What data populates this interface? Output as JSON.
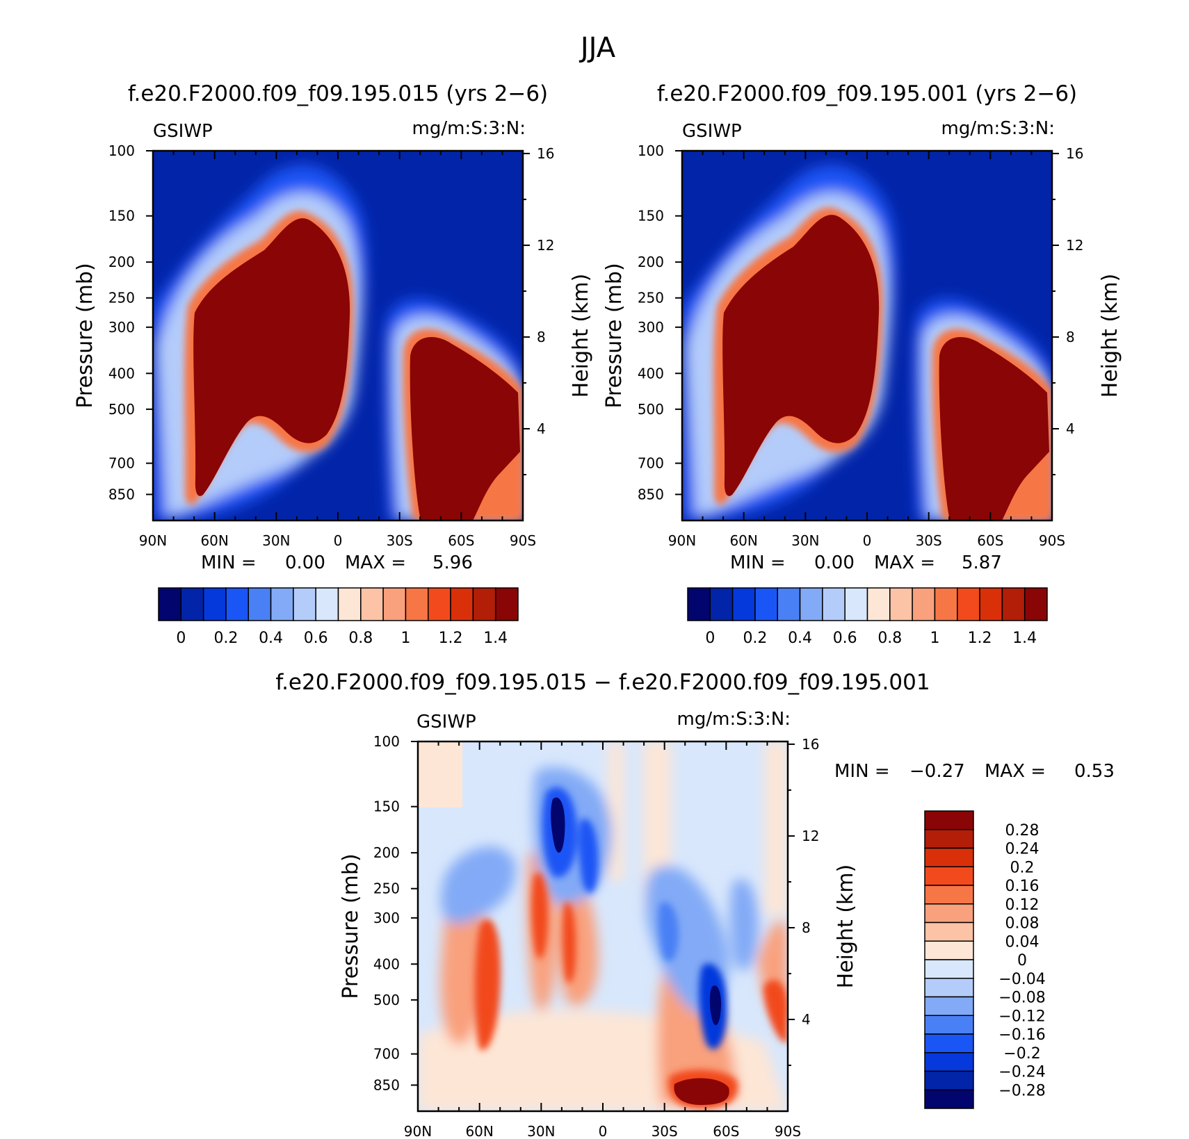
{
  "chart_data": [
    {
      "type": "heatmap",
      "title": "f.e20.F2000.f09_f09.195.015 (yrs 2−6)",
      "variable": "GSIWP",
      "units": "mg/m:S:3:N:",
      "stats": {
        "min_label": "MIN =",
        "min": "0.00",
        "max_label": "MAX =",
        "max": "5.96"
      },
      "ylabel": "Pressure (mb)",
      "ylabel_right": "Height (km)",
      "x_ticks": [
        "90N",
        "60N",
        "30N",
        "0",
        "30S",
        "60S",
        "90S"
      ],
      "x_tick_lat": [
        90,
        60,
        30,
        0,
        -30,
        -60,
        -90
      ],
      "y_ticks": [
        "100",
        "150",
        "200",
        "250",
        "300",
        "400",
        "500",
        "700",
        "850"
      ],
      "y_tick_mb": [
        100,
        150,
        200,
        250,
        300,
        400,
        500,
        700,
        850
      ],
      "height_ticks": [
        "16",
        "12",
        "8",
        "4"
      ],
      "height_tick_km": [
        16,
        12,
        8,
        4
      ],
      "colorbar": {
        "labels": [
          "0",
          "0.2",
          "0.4",
          "0.6",
          "0.8",
          "1",
          "1.2",
          "1.4"
        ],
        "colors": [
          "#02056e",
          "#0224a9",
          "#0539db",
          "#1a55f5",
          "#4a80f5",
          "#82aaf6",
          "#b4ccfa",
          "#d8e7fc",
          "#fde6d6",
          "#fcc3a6",
          "#f9a07d",
          "#f77645",
          "#f24a1d",
          "#d9300a",
          "#b21e08",
          "#8a0505"
        ]
      },
      "features": [
        {
          "desc": "NH upper/mid tropospheric maximum",
          "lat": 25,
          "p": 330,
          "value": 1.5
        },
        {
          "desc": "SH mid-latitude maximum",
          "lat": -52,
          "p": 480,
          "value": 1.5
        }
      ]
    },
    {
      "type": "heatmap",
      "title": "f.e20.F2000.f09_f09.195.001 (yrs 2−6)",
      "variable": "GSIWP",
      "units": "mg/m:S:3:N:",
      "stats": {
        "min_label": "MIN =",
        "min": "0.00",
        "max_label": "MAX =",
        "max": "5.87"
      },
      "ylabel": "Pressure (mb)",
      "ylabel_right": "Height (km)",
      "x_ticks": [
        "90N",
        "60N",
        "30N",
        "0",
        "30S",
        "60S",
        "90S"
      ],
      "x_tick_lat": [
        90,
        60,
        30,
        0,
        -30,
        -60,
        -90
      ],
      "y_ticks": [
        "100",
        "150",
        "200",
        "250",
        "300",
        "400",
        "500",
        "700",
        "850"
      ],
      "y_tick_mb": [
        100,
        150,
        200,
        250,
        300,
        400,
        500,
        700,
        850
      ],
      "height_ticks": [
        "16",
        "12",
        "8",
        "4"
      ],
      "height_tick_km": [
        16,
        12,
        8,
        4
      ],
      "colorbar": {
        "labels": [
          "0",
          "0.2",
          "0.4",
          "0.6",
          "0.8",
          "1",
          "1.2",
          "1.4"
        ],
        "colors": [
          "#02056e",
          "#0224a9",
          "#0539db",
          "#1a55f5",
          "#4a80f5",
          "#82aaf6",
          "#b4ccfa",
          "#d8e7fc",
          "#fde6d6",
          "#fcc3a6",
          "#f9a07d",
          "#f77645",
          "#f24a1d",
          "#d9300a",
          "#b21e08",
          "#8a0505"
        ]
      },
      "features": [
        {
          "desc": "NH upper/mid tropospheric maximum",
          "lat": 25,
          "p": 320,
          "value": 1.5
        },
        {
          "desc": "SH mid-latitude maximum",
          "lat": -52,
          "p": 470,
          "value": 1.5
        }
      ]
    },
    {
      "type": "heatmap",
      "title": "f.e20.F2000.f09_f09.195.015 − f.e20.F2000.f09_f09.195.001",
      "variable": "GSIWP",
      "units": "mg/m:S:3:N:",
      "stats": {
        "min_label": "MIN =",
        "min": "−0.27",
        "max_label": "MAX =",
        "max": "0.53"
      },
      "ylabel": "Pressure (mb)",
      "ylabel_right": "Height (km)",
      "x_ticks": [
        "90N",
        "60N",
        "30N",
        "0",
        "30S",
        "60S",
        "90S"
      ],
      "x_tick_lat": [
        90,
        60,
        30,
        0,
        -30,
        -60,
        -90
      ],
      "y_ticks": [
        "100",
        "150",
        "200",
        "250",
        "300",
        "400",
        "500",
        "700",
        "850"
      ],
      "y_tick_mb": [
        100,
        150,
        200,
        250,
        300,
        400,
        500,
        700,
        850
      ],
      "height_ticks": [
        "16",
        "12",
        "8",
        "4"
      ],
      "height_tick_km": [
        16,
        12,
        8,
        4
      ],
      "colorbar": {
        "labels": [
          "0.28",
          "0.24",
          "0.2",
          "0.16",
          "0.12",
          "0.08",
          "0.04",
          "0",
          "−0.04",
          "−0.08",
          "−0.12",
          "−0.16",
          "−0.2",
          "−0.24",
          "−0.28"
        ],
        "colors": [
          "#8a0505",
          "#b21e08",
          "#d9300a",
          "#f24a1d",
          "#f77645",
          "#f9a07d",
          "#fcc3a6",
          "#fde6d6",
          "#d8e7fc",
          "#b4ccfa",
          "#82aaf6",
          "#4a80f5",
          "#1a55f5",
          "#0539db",
          "#0224a9",
          "#02056e"
        ]
      },
      "features": [
        {
          "desc": "positive maximum, SH lower troposphere",
          "lat": -45,
          "p": 830,
          "value": 0.3
        },
        {
          "desc": "negative minimum, NH upper troposphere",
          "lat": 22,
          "p": 200,
          "value": -0.25
        },
        {
          "desc": "negative minimum, SH mid-troposphere",
          "lat": -55,
          "p": 500,
          "value": -0.25
        }
      ]
    }
  ],
  "figure": {
    "main_title": "JJA"
  }
}
